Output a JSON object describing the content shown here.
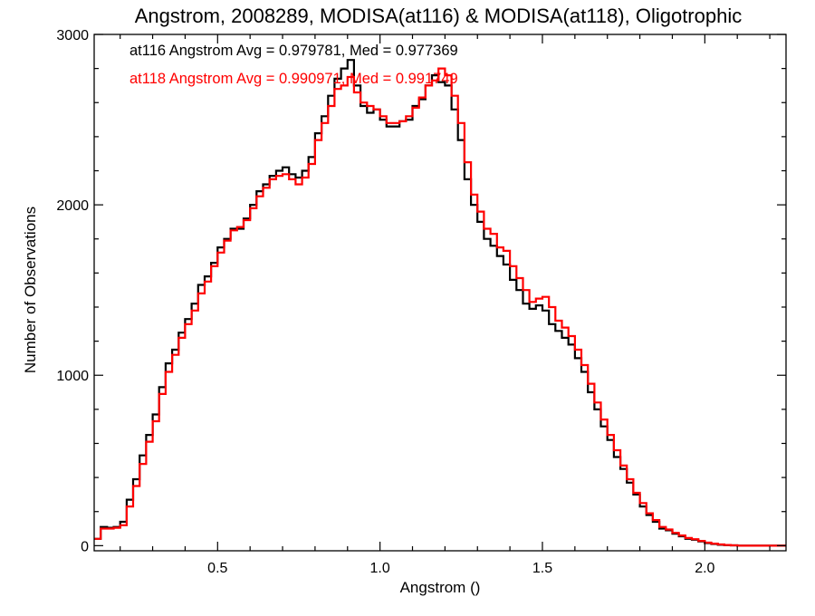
{
  "chart_data": {
    "type": "line",
    "title": "Angstrom, 2008289, MODISA(at116) & MODISA(at118), Oligotrophic",
    "xlabel": "Angstrom ()",
    "ylabel": "Number of Observations",
    "xlim": [
      0.12,
      2.25
    ],
    "ylim": [
      -30,
      3000
    ],
    "x_ticks": [
      0.5,
      1.0,
      1.5,
      2.0
    ],
    "x_tick_labels": [
      "0.5",
      "1.0",
      "1.5",
      "2.0"
    ],
    "y_ticks": [
      0,
      1000,
      2000,
      3000
    ],
    "y_tick_labels": [
      "0",
      "1000",
      "2000",
      "3000"
    ],
    "annotations": [
      "at116 Angstrom Avg = 0.979781, Med = 0.977369",
      "at118 Angstrom Avg = 0.990971, Med = 0.991749"
    ],
    "grid": false,
    "step": true,
    "series": [
      {
        "color": "#000000",
        "x": [
          0.12,
          0.14,
          0.16,
          0.18,
          0.2,
          0.22,
          0.24,
          0.26,
          0.28,
          0.3,
          0.32,
          0.34,
          0.36,
          0.38,
          0.4,
          0.42,
          0.44,
          0.46,
          0.48,
          0.5,
          0.52,
          0.54,
          0.56,
          0.58,
          0.6,
          0.62,
          0.64,
          0.66,
          0.68,
          0.7,
          0.72,
          0.74,
          0.76,
          0.78,
          0.8,
          0.82,
          0.84,
          0.86,
          0.88,
          0.9,
          0.92,
          0.94,
          0.96,
          0.98,
          1.0,
          1.02,
          1.04,
          1.06,
          1.08,
          1.1,
          1.12,
          1.14,
          1.16,
          1.18,
          1.2,
          1.22,
          1.24,
          1.26,
          1.28,
          1.3,
          1.32,
          1.34,
          1.36,
          1.38,
          1.4,
          1.42,
          1.44,
          1.46,
          1.48,
          1.5,
          1.52,
          1.54,
          1.56,
          1.58,
          1.6,
          1.62,
          1.64,
          1.66,
          1.68,
          1.7,
          1.72,
          1.74,
          1.76,
          1.78,
          1.8,
          1.82,
          1.84,
          1.86,
          1.88,
          1.9,
          1.92,
          1.94,
          1.96,
          1.98,
          2.0,
          2.02,
          2.04,
          2.06,
          2.08,
          2.1,
          2.12,
          2.14,
          2.2,
          2.25
        ],
        "y": [
          40,
          110,
          105,
          110,
          140,
          270,
          390,
          530,
          650,
          770,
          930,
          1070,
          1150,
          1250,
          1330,
          1420,
          1530,
          1580,
          1660,
          1750,
          1800,
          1860,
          1860,
          1920,
          2000,
          2080,
          2120,
          2170,
          2200,
          2220,
          2180,
          2160,
          2200,
          2280,
          2420,
          2520,
          2640,
          2740,
          2800,
          2850,
          2700,
          2580,
          2540,
          2560,
          2500,
          2460,
          2460,
          2490,
          2500,
          2580,
          2620,
          2700,
          2760,
          2720,
          2700,
          2560,
          2380,
          2150,
          2000,
          1900,
          1800,
          1760,
          1700,
          1650,
          1560,
          1500,
          1420,
          1390,
          1410,
          1380,
          1300,
          1260,
          1220,
          1180,
          1100,
          1020,
          900,
          800,
          700,
          620,
          520,
          450,
          370,
          300,
          230,
          180,
          140,
          100,
          90,
          70,
          55,
          40,
          35,
          25,
          15,
          10,
          5,
          3,
          2,
          0,
          0,
          0,
          0,
          0
        ]
      },
      {
        "color": "#ff0000",
        "x": [
          0.12,
          0.14,
          0.16,
          0.18,
          0.2,
          0.22,
          0.24,
          0.26,
          0.28,
          0.3,
          0.32,
          0.34,
          0.36,
          0.38,
          0.4,
          0.42,
          0.44,
          0.46,
          0.48,
          0.5,
          0.52,
          0.54,
          0.56,
          0.58,
          0.6,
          0.62,
          0.64,
          0.66,
          0.68,
          0.7,
          0.72,
          0.74,
          0.76,
          0.78,
          0.8,
          0.82,
          0.84,
          0.86,
          0.88,
          0.9,
          0.92,
          0.94,
          0.96,
          0.98,
          1.0,
          1.02,
          1.04,
          1.06,
          1.08,
          1.1,
          1.12,
          1.14,
          1.16,
          1.18,
          1.2,
          1.22,
          1.24,
          1.26,
          1.28,
          1.3,
          1.32,
          1.34,
          1.36,
          1.38,
          1.4,
          1.42,
          1.44,
          1.46,
          1.48,
          1.5,
          1.52,
          1.54,
          1.56,
          1.58,
          1.6,
          1.62,
          1.64,
          1.66,
          1.68,
          1.7,
          1.72,
          1.74,
          1.76,
          1.78,
          1.8,
          1.82,
          1.84,
          1.86,
          1.88,
          1.9,
          1.92,
          1.94,
          1.96,
          1.98,
          2.0,
          2.02,
          2.04,
          2.06,
          2.08,
          2.1,
          2.12,
          2.14,
          2.2,
          2.25
        ],
        "y": [
          40,
          100,
          100,
          105,
          120,
          230,
          350,
          480,
          610,
          730,
          890,
          1020,
          1120,
          1220,
          1300,
          1380,
          1480,
          1550,
          1640,
          1720,
          1790,
          1850,
          1870,
          1910,
          1980,
          2050,
          2100,
          2150,
          2170,
          2180,
          2150,
          2120,
          2160,
          2240,
          2380,
          2480,
          2580,
          2680,
          2700,
          2750,
          2660,
          2600,
          2580,
          2560,
          2520,
          2480,
          2480,
          2490,
          2520,
          2570,
          2630,
          2700,
          2730,
          2800,
          2760,
          2640,
          2480,
          2250,
          2060,
          1960,
          1860,
          1830,
          1750,
          1730,
          1640,
          1570,
          1500,
          1430,
          1450,
          1460,
          1400,
          1320,
          1280,
          1230,
          1150,
          1060,
          950,
          840,
          740,
          650,
          560,
          470,
          390,
          310,
          250,
          190,
          150,
          110,
          95,
          75,
          60,
          45,
          38,
          28,
          18,
          12,
          7,
          4,
          2,
          0,
          0,
          0,
          0,
          0
        ]
      }
    ]
  }
}
